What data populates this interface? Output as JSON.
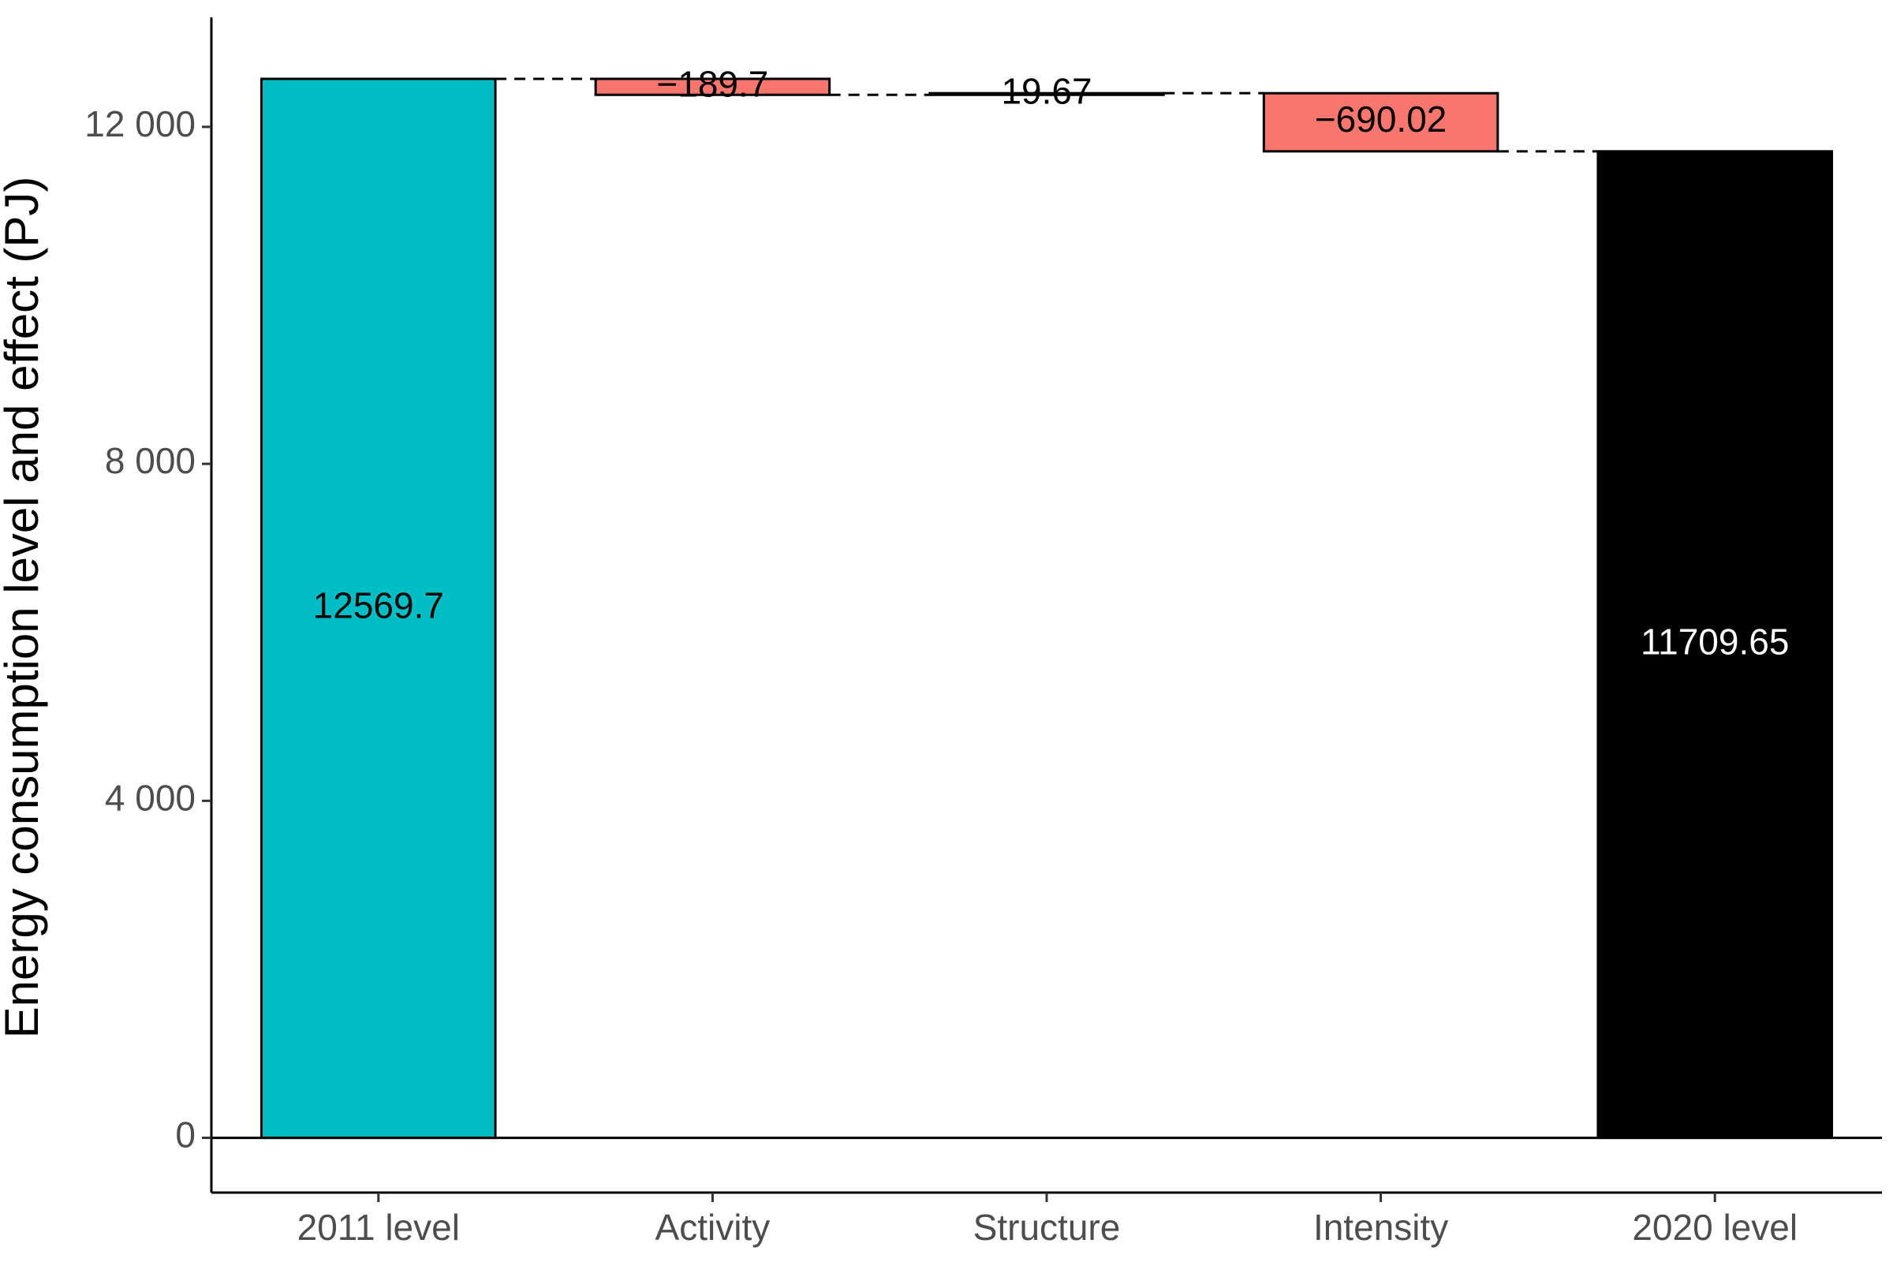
{
  "chart_data": {
    "type": "waterfall",
    "title": "",
    "xlabel": "",
    "ylabel": "Energy consumption level and effect (PJ)",
    "categories": [
      "2011 level",
      "Activity",
      "Structure",
      "Intensity",
      "2020 level"
    ],
    "values": [
      12569.7,
      -189.7,
      19.67,
      -690.02,
      11709.65
    ],
    "data_labels": [
      "12569.7",
      "−189.7",
      "19.67",
      "−690.02",
      "11709.65"
    ],
    "bar_kinds": [
      "level",
      "effect",
      "effect",
      "effect",
      "total"
    ],
    "ylim": [
      -650,
      13300
    ],
    "yticks": [
      0,
      4000,
      8000,
      12000
    ],
    "ytick_labels": [
      "0",
      "4 000",
      "8 000",
      "12 000"
    ],
    "grid": false,
    "legend": "none",
    "colors": {
      "level": "#00bfc4",
      "effect_negative": "#f8766d",
      "effect_positive": "#00bfc4",
      "total": "#000000",
      "label_on_dark": "#ffffff",
      "label_default": "#000000"
    }
  }
}
